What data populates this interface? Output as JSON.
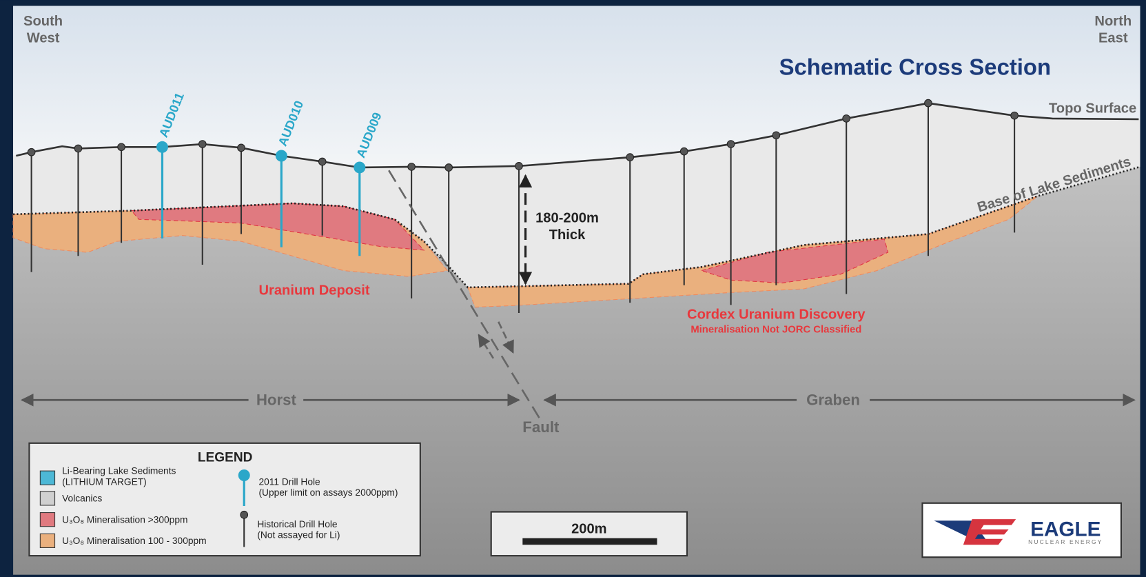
{
  "corners": {
    "left": [
      "South",
      "West"
    ],
    "right": [
      "North",
      "East"
    ]
  },
  "title": "Schematic Cross Section",
  "labels": {
    "topo": "Topo Surface",
    "base": "Base of Lake Sediments",
    "thickness": [
      "180-200m",
      "Thick"
    ],
    "deposit": "Uranium Deposit",
    "discovery": "Cordex Uranium Discovery",
    "discovery_note": "Mineralisation Not JORC Classified",
    "horst": "Horst",
    "graben": "Graben",
    "fault": "Fault"
  },
  "drill_holes": [
    "AUD011",
    "AUD010",
    "AUD009"
  ],
  "legend": {
    "title": "LEGEND",
    "items": [
      [
        "Li-Bearing Lake Sediments",
        "(LITHIUM TARGET)"
      ],
      [
        "Volcanics"
      ],
      [
        "U₃O₈ Mineralisation >300ppm"
      ],
      [
        "U₃O₈ Mineralisation 100 - 300ppm"
      ]
    ],
    "holes": [
      [
        "2011 Drill Hole",
        "(Upper limit on assays 2000ppm)"
      ],
      [
        "Historical Drill Hole",
        "(Not assayed for Li)"
      ]
    ]
  },
  "scale_bar": "200m",
  "logo": {
    "name": "EAGLE",
    "tagline": "NUCLEAR ENERGY"
  }
}
